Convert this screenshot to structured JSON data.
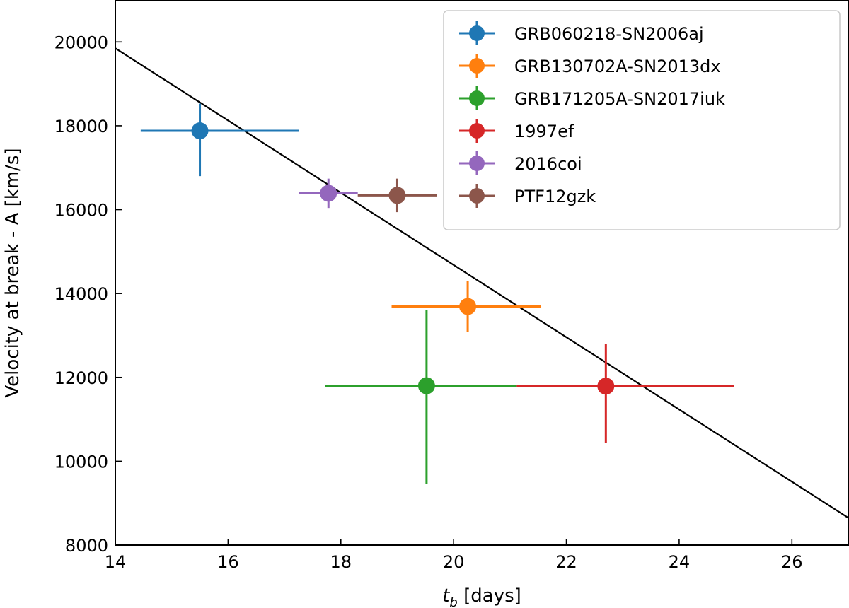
{
  "chart_data": {
    "type": "scatter",
    "title": "",
    "xlabel_main": "t",
    "xlabel_sub": "b",
    "xlabel_rest": " [days]",
    "ylabel": "Velocity at break - A [km/s]",
    "xlim": [
      14,
      27
    ],
    "ylim": [
      8000,
      21000
    ],
    "xticks": [
      14,
      16,
      18,
      20,
      22,
      24,
      26
    ],
    "yticks": [
      8000,
      10000,
      12000,
      14000,
      16000,
      18000,
      20000
    ],
    "grid": false,
    "legend_position": "top-right",
    "fit_line": {
      "color": "#000000",
      "x": [
        14,
        27
      ],
      "y": [
        19850,
        8650
      ]
    },
    "series": [
      {
        "name": "GRB060218-SN2006aj",
        "color": "#1f77b4",
        "x": 15.5,
        "y": 17880,
        "xerr": [
          1.05,
          1.75
        ],
        "yerr": [
          1080,
          650
        ]
      },
      {
        "name": "GRB130702A-SN2013dx",
        "color": "#ff7f0e",
        "x": 20.25,
        "y": 13690,
        "xerr": [
          1.35,
          1.3
        ],
        "yerr": [
          600,
          600
        ]
      },
      {
        "name": "GRB171205A-SN2017iuk",
        "color": "#2ca02c",
        "x": 19.52,
        "y": 11800,
        "xerr": [
          1.8,
          1.6
        ],
        "yerr": [
          2350,
          1800
        ]
      },
      {
        "name": "1997ef",
        "color": "#d62728",
        "x": 22.7,
        "y": 11790,
        "xerr": [
          1.58,
          2.27
        ],
        "yerr": [
          1350,
          1000
        ]
      },
      {
        "name": "2016coi",
        "color": "#9467bd",
        "x": 17.78,
        "y": 16390,
        "xerr": [
          0.52,
          0.52
        ],
        "yerr": [
          350,
          350
        ]
      },
      {
        "name": "PTF12gzk",
        "color": "#8c564b",
        "x": 19.0,
        "y": 16340,
        "xerr": [
          0.7,
          0.7
        ],
        "yerr": [
          400,
          400
        ]
      }
    ]
  }
}
